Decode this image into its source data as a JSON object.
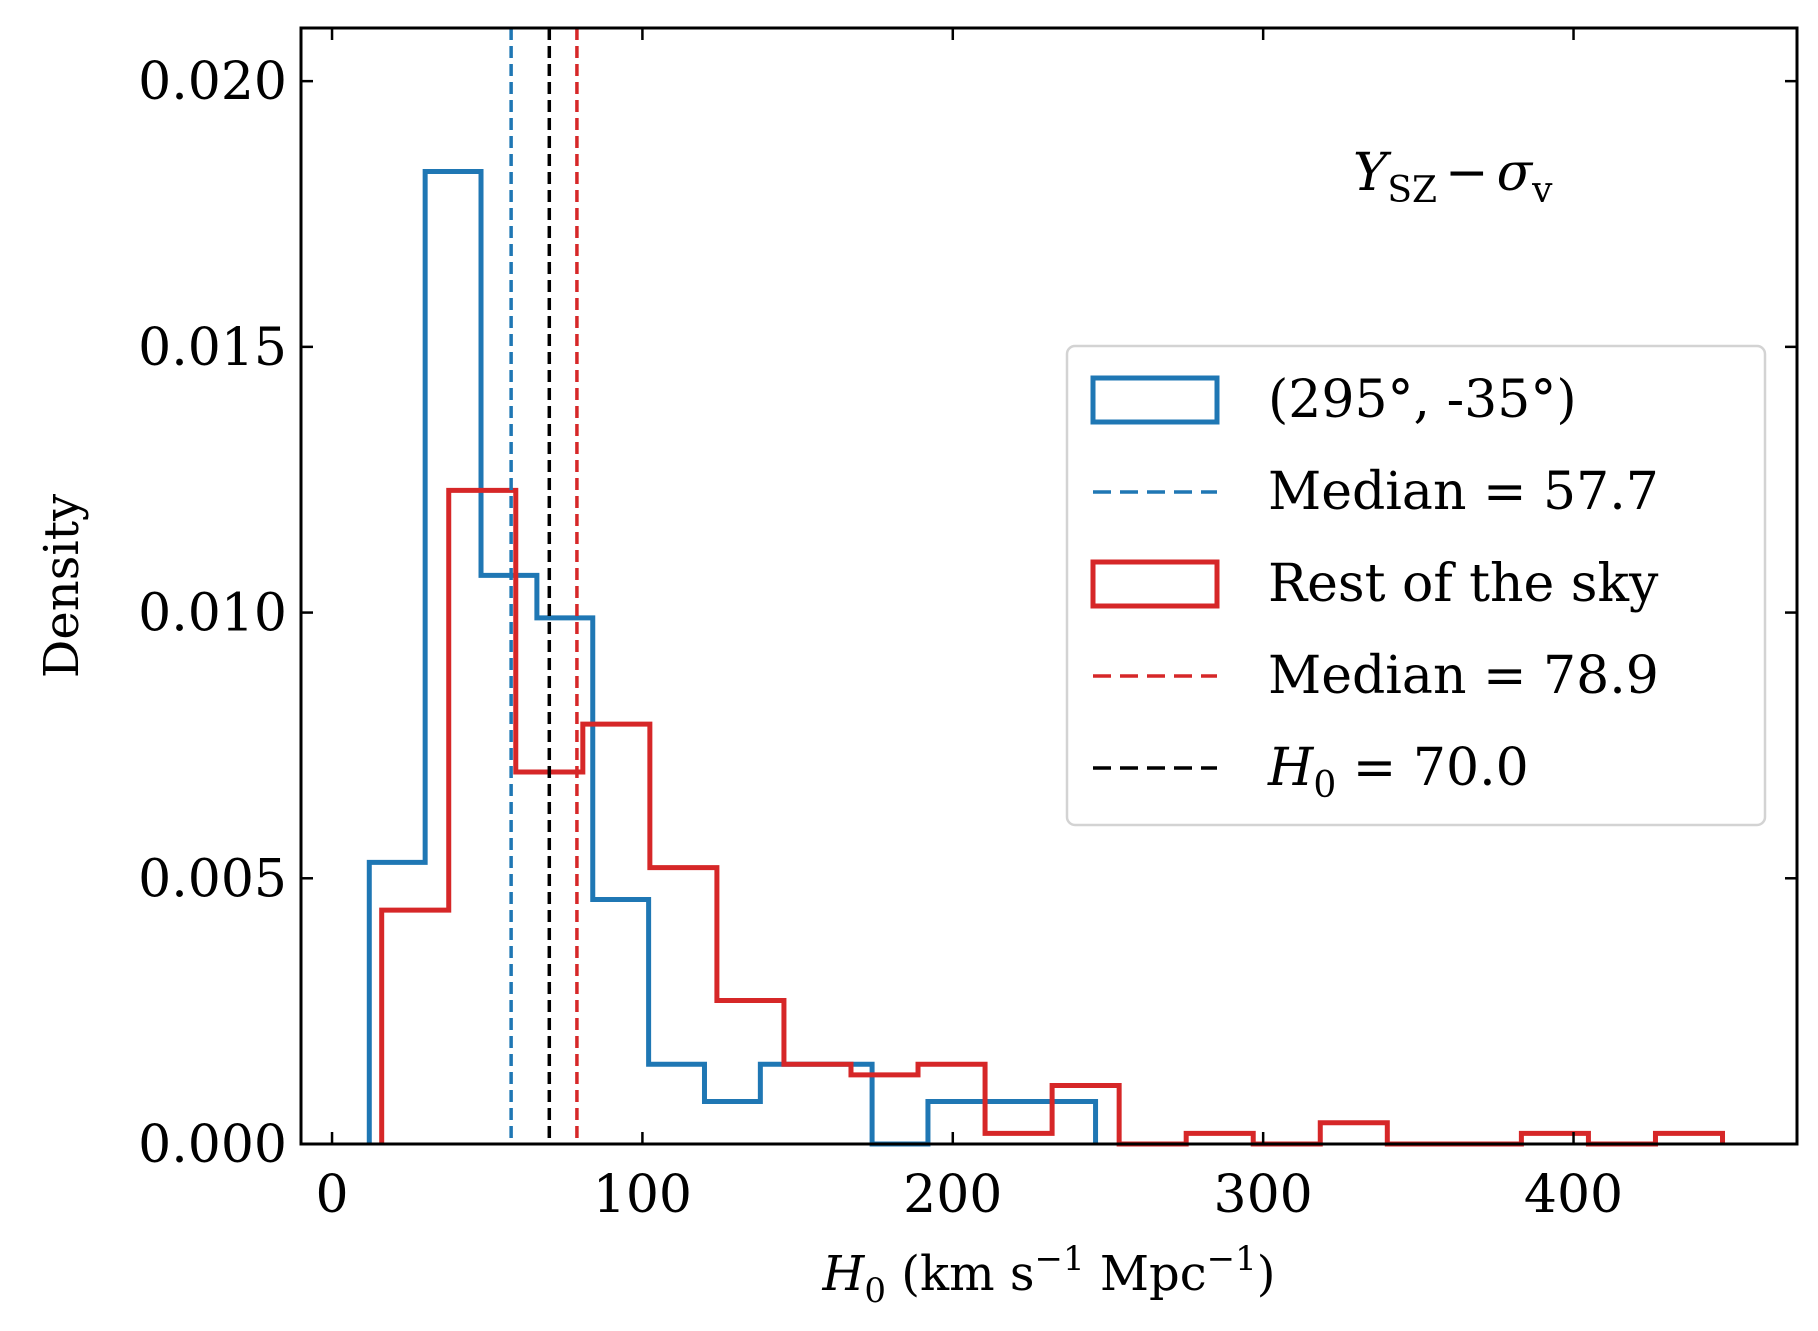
{
  "chart_data": {
    "type": "histogram",
    "annotation": {
      "symbol": "Y",
      "sub1": "SZ",
      "op": "−",
      "symbol2": "σ",
      "sub2": "v"
    },
    "xlabel": {
      "symbol": "H",
      "sub": "0",
      "units_open": " (km s",
      "exp1": "−1",
      "units_mid": " Mpc",
      "exp2": "−1",
      "units_close": ")"
    },
    "ylabel": "Density",
    "xlim": [
      -10,
      472
    ],
    "ylim": [
      0,
      0.021
    ],
    "xticks": [
      0,
      100,
      200,
      300,
      400
    ],
    "xtick_labels": [
      "0",
      "100",
      "200",
      "300",
      "400"
    ],
    "yticks": [
      0,
      0.005,
      0.01,
      0.015,
      0.02
    ],
    "ytick_labels": [
      "0.000",
      "0.005",
      "0.010",
      "0.015",
      "0.020"
    ],
    "series": [
      {
        "name": "(295°, -35°)",
        "color": "#1f77b4",
        "edges": [
          12,
          30,
          48,
          66,
          84,
          102,
          120,
          138,
          156,
          174,
          192,
          210,
          228,
          246
        ],
        "values": [
          0.0053,
          0.0183,
          0.0107,
          0.0099,
          0.0046,
          0.0015,
          0.0008,
          0.0015,
          0.0015,
          0.0,
          0.0008,
          0.0008,
          0.0008
        ]
      },
      {
        "name": "Rest of the sky",
        "color": "#d62728",
        "edges": [
          16,
          37.6,
          59.2,
          80.8,
          102.4,
          124,
          145.6,
          167.2,
          188.8,
          210.4,
          232,
          253.6,
          275.2,
          296.8,
          318.4,
          340,
          361.6,
          383.2,
          404.8,
          426.4,
          448
        ],
        "values": [
          0.0044,
          0.0123,
          0.007,
          0.0079,
          0.0052,
          0.0027,
          0.0015,
          0.0013,
          0.0015,
          0.0002,
          0.0011,
          0.0,
          0.0002,
          0.0,
          0.0004,
          0.0,
          0.0,
          0.0002,
          0.0,
          0.0002
        ]
      }
    ],
    "vlines": [
      {
        "name": "Median = 57.7",
        "x": 57.7,
        "color": "#1f77b4"
      },
      {
        "name": "Median = 78.9",
        "x": 78.9,
        "color": "#d62728"
      },
      {
        "name": "H0 = 70.0",
        "label_symbol": "H",
        "label_sub": "0",
        "label_rest": " = 70.0",
        "x": 70.0,
        "color": "#000000"
      }
    ],
    "legend": {
      "position": "center-right",
      "entries": [
        {
          "text": "(295°, -35°)",
          "kind": "patch",
          "color": "#1f77b4"
        },
        {
          "text": "Median = 57.7",
          "kind": "dash",
          "color": "#1f77b4"
        },
        {
          "text": "Rest of the sky",
          "kind": "patch",
          "color": "#d62728"
        },
        {
          "text": "Median = 78.9",
          "kind": "dash",
          "color": "#d62728"
        },
        {
          "text": "H0 = 70.0",
          "kind": "dash",
          "color": "#000000"
        }
      ]
    }
  }
}
